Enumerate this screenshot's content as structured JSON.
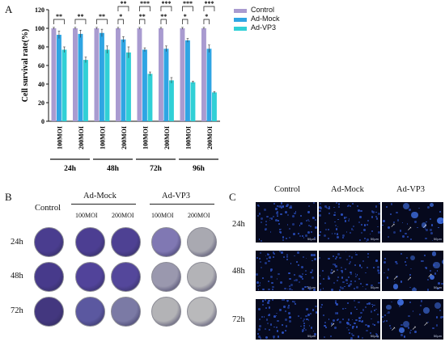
{
  "panels": {
    "a": "A",
    "b": "B",
    "c": "C"
  },
  "chart_data": {
    "type": "bar",
    "ylabel": "Cell survival rate(%)",
    "ylim": [
      0,
      120
    ],
    "yticks": [
      0,
      20,
      40,
      60,
      80,
      100,
      120
    ],
    "groups": [
      "24h",
      "48h",
      "72h",
      "96h"
    ],
    "categories": [
      "100MOI",
      "200MOI",
      "100MOI",
      "200MOI",
      "100MOI",
      "200MOI",
      "100MOI",
      "200MOI"
    ],
    "series": [
      {
        "name": "Control",
        "color": "#a99bd0",
        "values": [
          100,
          100,
          100,
          100,
          100,
          100,
          100,
          100
        ],
        "errors": [
          1,
          1,
          1,
          1,
          1,
          1,
          1,
          1
        ]
      },
      {
        "name": "Ad-Mock",
        "color": "#2fa5e3",
        "values": [
          93,
          94,
          95,
          88,
          77,
          78,
          87,
          78
        ],
        "errors": [
          4,
          4,
          4,
          3,
          2,
          3,
          2,
          4
        ]
      },
      {
        "name": "Ad-VP3",
        "color": "#30d0d6",
        "values": [
          77,
          66,
          77,
          74,
          51,
          44,
          42,
          31
        ],
        "errors": [
          3,
          3,
          4,
          6,
          2,
          3,
          1,
          1
        ]
      }
    ],
    "significance": [
      {
        "category": 0,
        "brackets": [
          {
            "text": "**",
            "from": 0,
            "to": 2
          }
        ]
      },
      {
        "category": 1,
        "brackets": [
          {
            "text": "**",
            "from": 0,
            "to": 2
          }
        ]
      },
      {
        "category": 2,
        "brackets": [
          {
            "text": "**",
            "from": 0,
            "to": 2
          }
        ]
      },
      {
        "category": 3,
        "brackets": [
          {
            "text": "**",
            "from": 0,
            "to": 2
          },
          {
            "text": "*",
            "from": 0,
            "to": 1
          }
        ]
      },
      {
        "category": 4,
        "brackets": [
          {
            "text": "***",
            "from": 0,
            "to": 2
          },
          {
            "text": "**",
            "from": 0,
            "to": 1
          }
        ]
      },
      {
        "category": 5,
        "brackets": [
          {
            "text": "***",
            "from": 0,
            "to": 2
          },
          {
            "text": "**",
            "from": 0,
            "to": 1
          }
        ]
      },
      {
        "category": 6,
        "brackets": [
          {
            "text": "***",
            "from": 0,
            "to": 2
          },
          {
            "text": "*",
            "from": 0,
            "to": 1
          }
        ]
      },
      {
        "category": 7,
        "brackets": [
          {
            "text": "***",
            "from": 0,
            "to": 2
          },
          {
            "text": "*",
            "from": 0,
            "to": 1
          }
        ]
      }
    ],
    "legend_position": "top-right"
  },
  "panel_b": {
    "col_control": "Control",
    "group_mock": "Ad-Mock",
    "group_vp3": "Ad-VP3",
    "sub_100": "100MOI",
    "sub_200": "200MOI",
    "rows": [
      "24h",
      "48h",
      "72h"
    ],
    "dish_colors": [
      [
        "#4a3d8f",
        "#4c3e92",
        "#4e4193",
        "#8078b3",
        "#a9a9b1"
      ],
      [
        "#473a8b",
        "#51439a",
        "#54479b",
        "#9a98ae",
        "#b3b3b7"
      ],
      [
        "#43377f",
        "#5b58a0",
        "#7b7aa5",
        "#b3b3b6",
        "#b9b9bb"
      ]
    ]
  },
  "panel_c": {
    "cols": [
      "Control",
      "Ad-Mock",
      "Ad-VP3"
    ],
    "rows": [
      "24h",
      "48h",
      "72h"
    ],
    "scale_label": "50μm"
  }
}
